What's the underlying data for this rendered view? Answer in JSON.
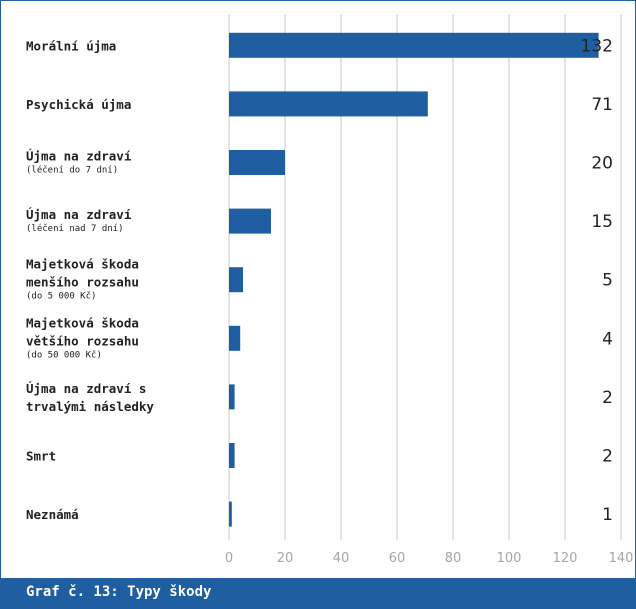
{
  "chart_data": {
    "type": "bar",
    "orientation": "horizontal",
    "categories": [
      {
        "lines": [
          "Morální újma"
        ],
        "note": ""
      },
      {
        "lines": [
          "Psychická újma"
        ],
        "note": ""
      },
      {
        "lines": [
          "Újma na zdraví"
        ],
        "note": "(léčení do 7 dní)"
      },
      {
        "lines": [
          "Újma na zdraví"
        ],
        "note": "(léčení nad 7 dní)"
      },
      {
        "lines": [
          "Majetková škoda",
          "menšího rozsahu"
        ],
        "note": "(do 5 000 Kč)"
      },
      {
        "lines": [
          "Majetková škoda",
          "většího rozsahu"
        ],
        "note": "(do 50 000 Kč)"
      },
      {
        "lines": [
          "Újma na zdraví s",
          "trvalými následky"
        ],
        "note": ""
      },
      {
        "lines": [
          "Smrt"
        ],
        "note": ""
      },
      {
        "lines": [
          "Neznámá"
        ],
        "note": ""
      }
    ],
    "values": [
      132,
      71,
      20,
      15,
      5,
      4,
      2,
      2,
      1
    ],
    "value_labels": [
      "132",
      "71",
      "20",
      "15",
      "5",
      "4",
      "2",
      "2",
      "1"
    ],
    "xlim": [
      0,
      140
    ],
    "xticks": [
      0,
      20,
      40,
      60,
      80,
      100,
      120,
      140
    ],
    "xtick_labels": [
      "0",
      "20",
      "40",
      "60",
      "80",
      "100",
      "120",
      "140"
    ],
    "grid": "vertical",
    "legend": "none",
    "bar_color": "#1f5ea1",
    "grid_color": "#c8c8c8",
    "caption": "Graf č. 13: Typy škody"
  }
}
